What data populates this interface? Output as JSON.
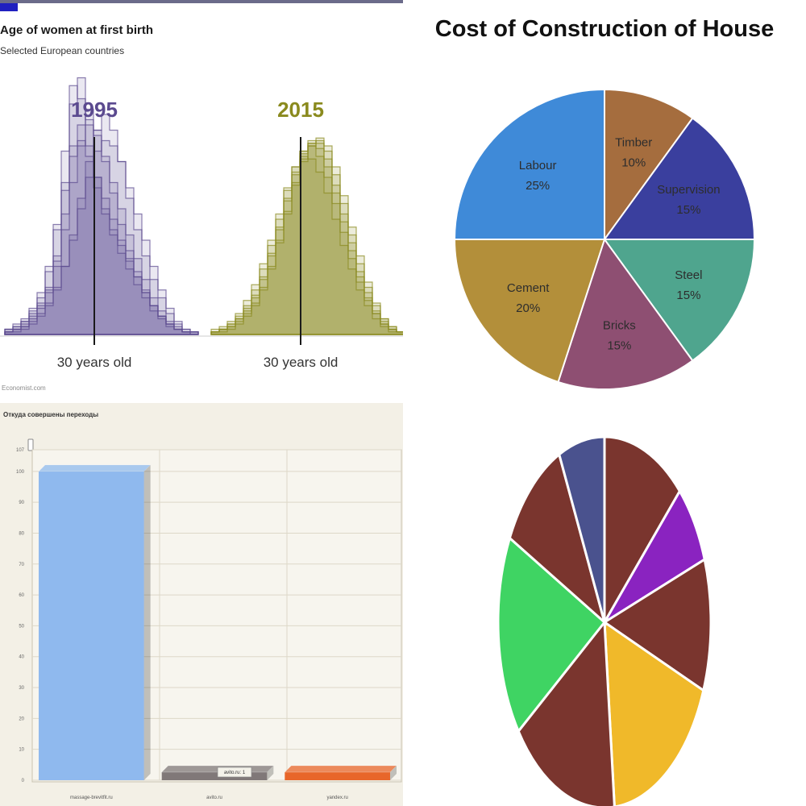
{
  "chart_data": [
    {
      "type": "area",
      "title": "Age of women at first birth",
      "subtitle": "Selected European countries",
      "source": "Economist.com",
      "xlabel": "",
      "ylabel": "",
      "grid": false,
      "colors": {
        "1995": "#5b4a8f",
        "2015": "#8a8a1e",
        "marker": "#1a1a1a"
      },
      "series": [
        {
          "name": "1995",
          "marker_label": "30 years old",
          "marker_age": 30,
          "countries": [
            [
              2,
              3,
              5,
              8,
              12,
              18,
              30,
              55,
              88,
              98,
              82,
              60,
              48,
              40,
              34,
              28,
              22,
              16,
              11,
              7,
              4,
              2,
              1,
              1
            ],
            [
              2,
              3,
              5,
              9,
              14,
              24,
              42,
              70,
              95,
              90,
              72,
              56,
              46,
              38,
              31,
              25,
              19,
              14,
              9,
              6,
              3,
              2,
              1,
              0
            ],
            [
              1,
              2,
              4,
              7,
              11,
              17,
              28,
              46,
              68,
              80,
              86,
              78,
              66,
              54,
              42,
              32,
              24,
              17,
              11,
              7,
              4,
              2,
              1,
              1
            ],
            [
              1,
              2,
              3,
              6,
              10,
              16,
              26,
              40,
              58,
              72,
              80,
              76,
              68,
              58,
              48,
              38,
              29,
              21,
              14,
              9,
              5,
              3,
              1,
              1
            ],
            [
              2,
              4,
              6,
              10,
              16,
              26,
              40,
              58,
              72,
              74,
              68,
              60,
              52,
              44,
              36,
              29,
              22,
              16,
              11,
              7,
              4,
              2,
              1,
              0
            ],
            [
              1,
              2,
              3,
              5,
              8,
              12,
              18,
              26,
              36,
              48,
              60,
              70,
              74,
              72,
              66,
              56,
              46,
              36,
              26,
              17,
              10,
              5,
              2,
              1
            ],
            [
              1,
              1,
              2,
              4,
              7,
              11,
              17,
              26,
              38,
              52,
              66,
              78,
              84,
              78,
              66,
              52,
              40,
              30,
              21,
              14,
              8,
              4,
              2,
              1
            ]
          ]
        },
        {
          "name": "2015",
          "marker_label": "30 years old",
          "marker_age": 30,
          "countries": [
            [
              1,
              2,
              4,
              7,
              11,
              17,
              25,
              34,
              44,
              55,
              64,
              70,
              72,
              68,
              60,
              50,
              39,
              29,
              20,
              13,
              8,
              4,
              2,
              1
            ],
            [
              1,
              2,
              3,
              6,
              9,
              14,
              21,
              30,
              40,
              51,
              61,
              69,
              73,
              71,
              64,
              54,
              43,
              32,
              22,
              14,
              8,
              4,
              2,
              1
            ],
            [
              2,
              3,
              5,
              8,
              13,
              19,
              27,
              36,
              46,
              56,
              64,
              68,
              67,
              62,
              54,
              44,
              34,
              25,
              17,
              11,
              6,
              3,
              1,
              1
            ],
            [
              1,
              1,
              2,
              4,
              7,
              11,
              17,
              25,
              35,
              46,
              57,
              66,
              72,
              74,
              70,
              61,
              50,
              38,
              27,
              18,
              11,
              6,
              3,
              1
            ],
            [
              1,
              2,
              4,
              6,
              10,
              15,
              22,
              31,
              41,
              52,
              62,
              70,
              74,
              73,
              67,
              57,
              46,
              35,
              24,
              16,
              9,
              5,
              2,
              1
            ],
            [
              1,
              2,
              3,
              5,
              8,
              12,
              18,
              26,
              36,
              47,
              58,
              67,
              73,
              75,
              72,
              64,
              53,
              41,
              30,
              20,
              12,
              6,
              3,
              1
            ]
          ]
        }
      ]
    },
    {
      "type": "pie",
      "title": "Cost of Construction of House",
      "legend": "none",
      "slices": [
        {
          "label": "Timber",
          "value": 10,
          "value_label": "10%",
          "color": "#a56d3e"
        },
        {
          "label": "Supervision",
          "value": 15,
          "value_label": "15%",
          "color": "#3a3f9e"
        },
        {
          "label": "Steel",
          "value": 15,
          "value_label": "15%",
          "color": "#4fa58e"
        },
        {
          "label": "Bricks",
          "value": 15,
          "value_label": "15%",
          "color": "#8e4f72"
        },
        {
          "label": "Cement",
          "value": 20,
          "value_label": "20%",
          "color": "#b38f3a"
        },
        {
          "label": "Labour",
          "value": 25,
          "value_label": "25%",
          "color": "#3f8ad8"
        }
      ]
    },
    {
      "type": "bar",
      "title": "Откуда совершены переходы",
      "xlabel": "",
      "ylabel": "",
      "ylim": [
        0,
        107
      ],
      "yticks": [
        0,
        10,
        20,
        30,
        40,
        50,
        60,
        70,
        80,
        90,
        100,
        107
      ],
      "grid": true,
      "tooltip": "avito.ru: 1",
      "categories": [
        "massage-brevitfit.ru",
        "avito.ru",
        "yandex.ru"
      ],
      "values": [
        100,
        1,
        1
      ],
      "colors": [
        "#8fb9ee",
        "#807878",
        "#e8662a"
      ]
    },
    {
      "type": "pie",
      "title": "",
      "legend": "none",
      "slices": [
        {
          "value": 12.5,
          "color": "#7a352e"
        },
        {
          "value": 7,
          "color": "#8a23c0"
        },
        {
          "value": 11.5,
          "color": "#7a352e"
        },
        {
          "value": 17.5,
          "color": "#f0b92a"
        },
        {
          "value": 16.5,
          "color": "#7a352e"
        },
        {
          "value": 17.5,
          "color": "#3fd463"
        },
        {
          "value": 10.5,
          "color": "#7a352e"
        },
        {
          "value": 7,
          "color": "#4a528e"
        }
      ]
    }
  ]
}
